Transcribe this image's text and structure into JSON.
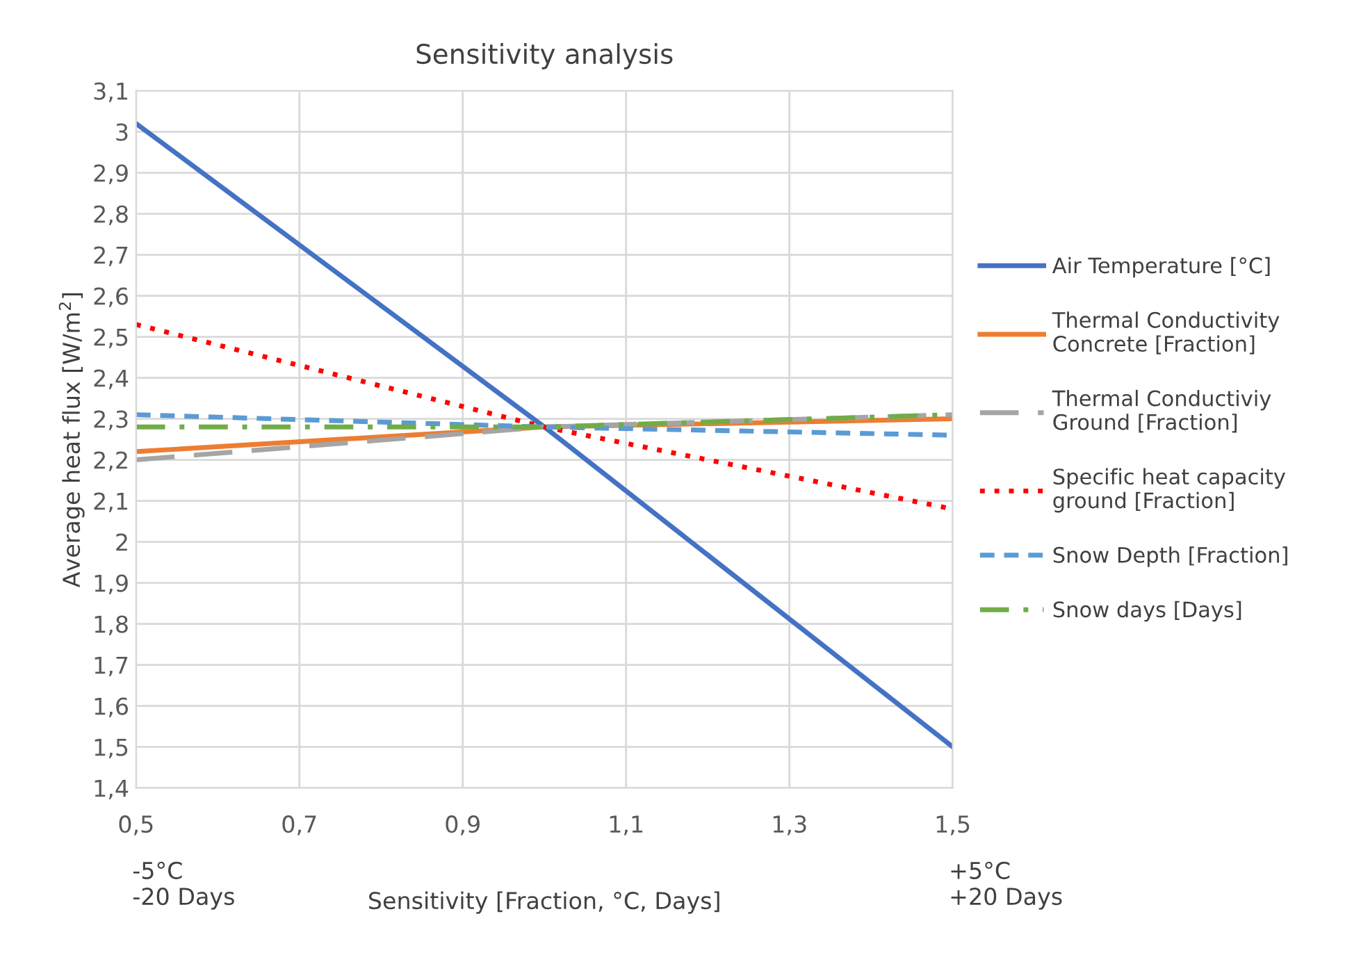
{
  "chart_data": {
    "type": "line",
    "title": "Sensitivity analysis",
    "xlabel": "Sensitivity [Fraction, °C, Days]",
    "ylabel": "Average heat flux [W/m$^{2}$]",
    "x": [
      0.5,
      1.0,
      1.5
    ],
    "series": [
      {
        "name": "Air Temperature [°C]",
        "color": "#4472c4",
        "line_style": "solid",
        "values": [
          3.02,
          2.28,
          1.5
        ]
      },
      {
        "name": "Thermal Conductivity Concrete [Fraction]",
        "color": "#ed7d31",
        "line_style": "solid",
        "values": [
          2.22,
          2.28,
          2.3
        ]
      },
      {
        "name": "Thermal Conductiviy Ground [Fraction]",
        "color": "#a5a5a5",
        "line_style": "longdash",
        "values": [
          2.2,
          2.28,
          2.31
        ]
      },
      {
        "name": "Specific heat capacity ground [Fraction]",
        "color": "#ff0000",
        "line_style": "dotted",
        "values": [
          2.53,
          2.28,
          2.08
        ]
      },
      {
        "name": "Snow Depth [Fraction]",
        "color": "#5b9bd5",
        "line_style": "dashed",
        "values": [
          2.31,
          2.28,
          2.26
        ]
      },
      {
        "name": "Snow days [Days]",
        "color": "#70ad47",
        "line_style": "dashdot",
        "values": [
          2.28,
          2.28,
          2.31
        ]
      }
    ],
    "xlim": [
      0.5,
      1.5
    ],
    "xticks": [
      {
        "value": 0.5,
        "label": "0,5"
      },
      {
        "value": 0.7,
        "label": "0,7"
      },
      {
        "value": 0.9,
        "label": "0,9"
      },
      {
        "value": 1.1,
        "label": "1,1"
      },
      {
        "value": 1.3,
        "label": "1,3"
      },
      {
        "value": 1.5,
        "label": "1,5"
      }
    ],
    "ylim": [
      1.4,
      3.1
    ],
    "yticks": [
      {
        "value": 1.4,
        "label": "1,4"
      },
      {
        "value": 1.5,
        "label": "1,5"
      },
      {
        "value": 1.6,
        "label": "1,6"
      },
      {
        "value": 1.7,
        "label": "1,7"
      },
      {
        "value": 1.8,
        "label": "1,8"
      },
      {
        "value": 1.9,
        "label": "1,9"
      },
      2,
      {
        "value": 2.1,
        "label": "2,1"
      },
      {
        "value": 2.2,
        "label": "2,2"
      },
      {
        "value": 2.3,
        "label": "2,3"
      },
      {
        "value": 2.4,
        "label": "2,4"
      },
      {
        "value": 2.5,
        "label": "2,5"
      },
      {
        "value": 2.6,
        "label": "2,6"
      },
      {
        "value": 2.7,
        "label": "2,7"
      },
      {
        "value": 2.8,
        "label": "2,8"
      },
      {
        "value": 2.9,
        "label": "2,9"
      },
      3,
      {
        "value": 3.1,
        "label": "3,1"
      }
    ],
    "annotations": [
      "-5°C\n-20 Days",
      "+5°C\n+20 Days"
    ],
    "grid": true,
    "legend": "right",
    "marker": "none"
  }
}
